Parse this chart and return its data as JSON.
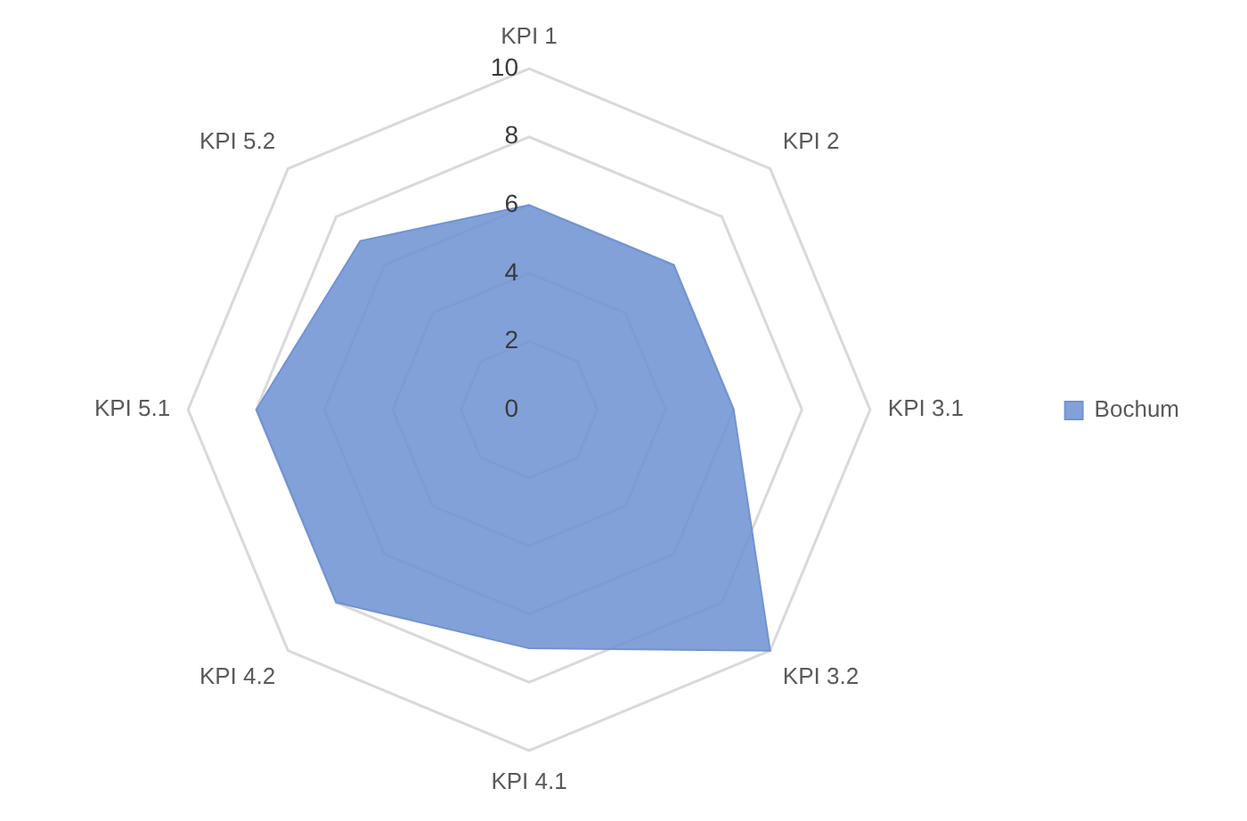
{
  "chart_data": {
    "type": "radar",
    "categories": [
      "KPI 1",
      "KPI 2",
      "KPI 3.1",
      "KPI 3.2",
      "KPI 4.1",
      "KPI 4.2",
      "KPI 5.1",
      "KPI 5.2"
    ],
    "series": [
      {
        "name": "Bochum",
        "color": "#7093d3",
        "values": [
          6,
          6,
          6,
          10,
          7,
          8,
          8,
          7
        ]
      }
    ],
    "ylim": [
      0,
      10
    ],
    "yticks": [
      0,
      2,
      4,
      6,
      8,
      10
    ],
    "grid": true,
    "legend": "right"
  }
}
